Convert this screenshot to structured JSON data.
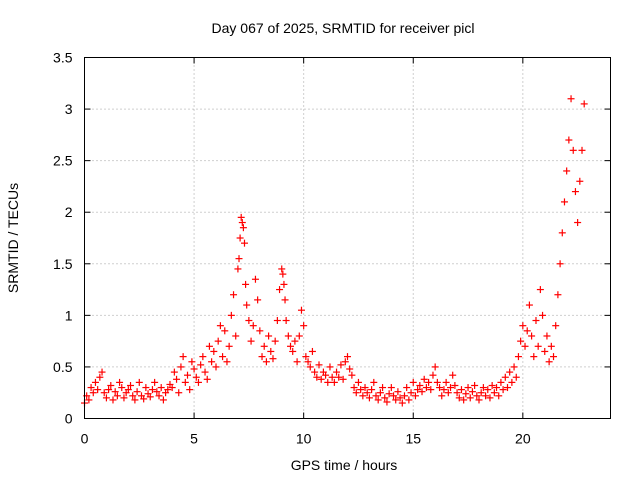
{
  "chart_data": {
    "type": "scatter",
    "title": "Day 067 of 2025, SRMTID for receiver picl",
    "xlabel": "GPS time / hours",
    "ylabel": "SRMTID / TECUs",
    "xlim": [
      0,
      24
    ],
    "ylim": [
      0,
      3.5
    ],
    "xticks": [
      0,
      5,
      10,
      15,
      20
    ],
    "yticks": [
      0,
      0.5,
      1,
      1.5,
      2,
      2.5,
      3,
      3.5
    ],
    "xtick_labels": [
      "0",
      "5",
      "10",
      "15",
      "20"
    ],
    "ytick_labels": [
      "0",
      "0.5",
      "1",
      "1.5",
      "2",
      "2.5",
      "3",
      "3.5"
    ],
    "grid": true,
    "marker": "+",
    "color": "#ff0000",
    "series": [
      {
        "name": "picl",
        "x": [
          0.0,
          0.1,
          0.2,
          0.3,
          0.4,
          0.5,
          0.6,
          0.7,
          0.8,
          0.9,
          1.0,
          1.1,
          1.2,
          1.3,
          1.4,
          1.5,
          1.6,
          1.7,
          1.8,
          1.9,
          2.0,
          2.1,
          2.2,
          2.3,
          2.4,
          2.5,
          2.6,
          2.7,
          2.8,
          2.9,
          3.0,
          3.1,
          3.2,
          3.3,
          3.4,
          3.5,
          3.6,
          3.7,
          3.8,
          3.9,
          4.0,
          4.1,
          4.2,
          4.3,
          4.4,
          4.5,
          4.6,
          4.7,
          4.8,
          4.9,
          5.0,
          5.1,
          5.2,
          5.3,
          5.4,
          5.5,
          5.6,
          5.7,
          5.8,
          5.9,
          6.0,
          6.1,
          6.2,
          6.3,
          6.4,
          6.5,
          6.6,
          6.7,
          6.8,
          6.9,
          7.0,
          7.05,
          7.1,
          7.15,
          7.2,
          7.25,
          7.3,
          7.35,
          7.4,
          7.5,
          7.6,
          7.7,
          7.8,
          7.9,
          8.0,
          8.1,
          8.2,
          8.3,
          8.4,
          8.5,
          8.6,
          8.7,
          8.8,
          8.9,
          9.0,
          9.05,
          9.1,
          9.15,
          9.2,
          9.3,
          9.4,
          9.5,
          9.6,
          9.7,
          9.8,
          9.9,
          10.0,
          10.1,
          10.2,
          10.3,
          10.4,
          10.5,
          10.6,
          10.7,
          10.8,
          10.9,
          11.0,
          11.1,
          11.2,
          11.3,
          11.4,
          11.5,
          11.6,
          11.7,
          11.8,
          11.9,
          12.0,
          12.1,
          12.2,
          12.3,
          12.4,
          12.5,
          12.6,
          12.7,
          12.8,
          12.9,
          13.0,
          13.1,
          13.2,
          13.3,
          13.4,
          13.5,
          13.6,
          13.7,
          13.8,
          13.9,
          14.0,
          14.1,
          14.2,
          14.3,
          14.4,
          14.5,
          14.6,
          14.7,
          14.8,
          14.9,
          15.0,
          15.1,
          15.2,
          15.3,
          15.4,
          15.5,
          15.6,
          15.7,
          15.8,
          15.9,
          16.0,
          16.1,
          16.2,
          16.3,
          16.4,
          16.5,
          16.6,
          16.7,
          16.8,
          16.9,
          17.0,
          17.1,
          17.2,
          17.3,
          17.4,
          17.5,
          17.6,
          17.7,
          17.8,
          17.9,
          18.0,
          18.1,
          18.2,
          18.3,
          18.4,
          18.5,
          18.6,
          18.7,
          18.8,
          18.9,
          19.0,
          19.1,
          19.2,
          19.3,
          19.4,
          19.5,
          19.6,
          19.7,
          19.8,
          19.9,
          20.0,
          20.1,
          20.2,
          20.3,
          20.4,
          20.5,
          20.6,
          20.7,
          20.8,
          20.9,
          21.0,
          21.1,
          21.2,
          21.3,
          21.4,
          21.5,
          21.6,
          21.7,
          21.8,
          21.9,
          22.0,
          22.1,
          22.2,
          22.3,
          22.4,
          22.5,
          22.6,
          22.7,
          22.8
        ],
        "y": [
          0.15,
          0.22,
          0.18,
          0.3,
          0.25,
          0.35,
          0.28,
          0.4,
          0.45,
          0.25,
          0.2,
          0.28,
          0.32,
          0.18,
          0.26,
          0.22,
          0.35,
          0.3,
          0.2,
          0.25,
          0.28,
          0.32,
          0.22,
          0.18,
          0.26,
          0.35,
          0.22,
          0.19,
          0.3,
          0.24,
          0.21,
          0.28,
          0.35,
          0.26,
          0.22,
          0.3,
          0.18,
          0.25,
          0.28,
          0.33,
          0.3,
          0.45,
          0.38,
          0.25,
          0.5,
          0.6,
          0.35,
          0.42,
          0.28,
          0.55,
          0.48,
          0.4,
          0.35,
          0.52,
          0.6,
          0.45,
          0.38,
          0.7,
          0.55,
          0.65,
          0.5,
          0.75,
          0.9,
          0.6,
          0.85,
          0.55,
          0.7,
          1.0,
          1.2,
          0.8,
          1.45,
          1.55,
          1.75,
          1.95,
          1.9,
          1.85,
          1.7,
          1.3,
          1.1,
          0.95,
          0.75,
          0.9,
          1.35,
          1.15,
          0.85,
          0.6,
          0.7,
          0.55,
          0.8,
          0.65,
          0.58,
          0.75,
          0.95,
          1.25,
          1.45,
          1.4,
          1.3,
          1.15,
          0.95,
          0.8,
          0.7,
          0.65,
          0.75,
          0.55,
          0.8,
          1.05,
          0.9,
          0.6,
          0.55,
          0.5,
          0.65,
          0.45,
          0.4,
          0.52,
          0.38,
          0.45,
          0.42,
          0.35,
          0.5,
          0.4,
          0.35,
          0.45,
          0.4,
          0.52,
          0.38,
          0.55,
          0.6,
          0.48,
          0.42,
          0.3,
          0.25,
          0.35,
          0.28,
          0.22,
          0.3,
          0.25,
          0.2,
          0.28,
          0.35,
          0.22,
          0.18,
          0.25,
          0.3,
          0.2,
          0.16,
          0.24,
          0.3,
          0.22,
          0.18,
          0.26,
          0.2,
          0.15,
          0.22,
          0.3,
          0.18,
          0.25,
          0.35,
          0.22,
          0.28,
          0.32,
          0.26,
          0.38,
          0.3,
          0.35,
          0.28,
          0.42,
          0.5,
          0.35,
          0.3,
          0.22,
          0.28,
          0.35,
          0.25,
          0.3,
          0.42,
          0.32,
          0.25,
          0.2,
          0.28,
          0.18,
          0.24,
          0.3,
          0.2,
          0.26,
          0.32,
          0.22,
          0.18,
          0.25,
          0.3,
          0.22,
          0.28,
          0.2,
          0.32,
          0.25,
          0.3,
          0.22,
          0.35,
          0.28,
          0.4,
          0.3,
          0.45,
          0.35,
          0.5,
          0.4,
          0.6,
          0.75,
          0.9,
          0.7,
          0.85,
          1.1,
          0.8,
          0.6,
          0.95,
          0.7,
          1.25,
          1.0,
          0.65,
          0.8,
          0.55,
          0.7,
          0.6,
          0.9,
          1.2,
          1.5,
          1.8,
          2.1,
          2.4,
          2.7,
          3.1,
          2.6,
          2.2,
          1.9,
          2.3,
          2.6,
          3.05
        ]
      }
    ]
  }
}
